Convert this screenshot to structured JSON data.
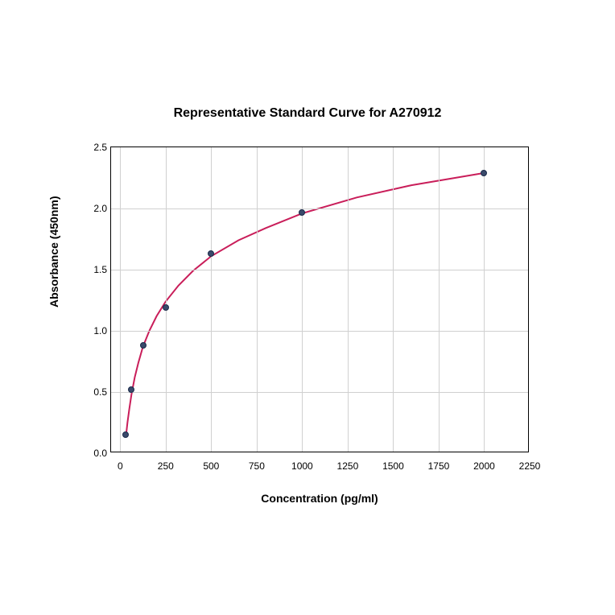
{
  "chart": {
    "type": "scatter",
    "title": "Representative Standard Curve for A270912",
    "title_fontsize": 16,
    "xlabel": "Concentration (pg/ml)",
    "ylabel": "Absorbance (450nm)",
    "label_fontsize": 14,
    "tick_fontsize": 12,
    "xlim": [
      -50,
      2250
    ],
    "ylim": [
      0.0,
      2.5
    ],
    "xticks": [
      0,
      250,
      500,
      750,
      1000,
      1250,
      1500,
      1750,
      2000,
      2250
    ],
    "yticks": [
      0.0,
      0.5,
      1.0,
      1.5,
      2.0,
      2.5
    ],
    "background_color": "#ffffff",
    "grid_color": "#d0d0d0",
    "border_color": "#000000",
    "data_points": {
      "x": [
        31,
        62,
        125,
        250,
        500,
        1000,
        2000
      ],
      "y": [
        0.15,
        0.52,
        0.88,
        1.19,
        1.63,
        1.97,
        2.29
      ]
    },
    "marker_color": "#3a4a6b",
    "marker_border": "#1a2a4a",
    "marker_size": 8,
    "curve_color": "#c91e5a",
    "curve_width": 2,
    "curve_points": {
      "x": [
        31,
        40,
        50,
        62,
        80,
        100,
        125,
        160,
        200,
        250,
        320,
        400,
        500,
        650,
        800,
        1000,
        1300,
        1600,
        2000
      ],
      "y": [
        0.13,
        0.25,
        0.36,
        0.48,
        0.62,
        0.74,
        0.87,
        1.0,
        1.12,
        1.24,
        1.37,
        1.49,
        1.61,
        1.74,
        1.84,
        1.96,
        2.09,
        2.19,
        2.29
      ]
    }
  }
}
